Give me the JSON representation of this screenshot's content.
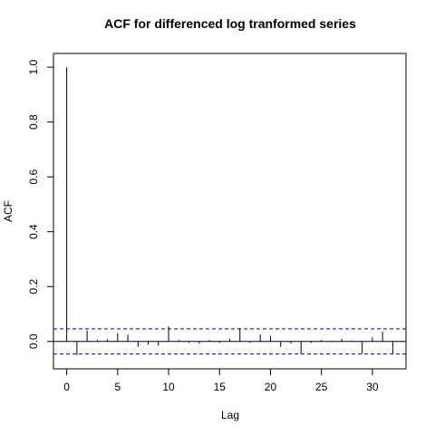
{
  "chart_data": {
    "type": "bar",
    "title": "ACF for differenced log tranformed series",
    "xlabel": "Lag",
    "ylabel": "ACF",
    "xlim": [
      -1.3,
      33.3
    ],
    "ylim": [
      -0.1,
      1.05
    ],
    "x_ticks": [
      0,
      5,
      10,
      15,
      20,
      25,
      30
    ],
    "y_ticks": [
      0.0,
      0.2,
      0.4,
      0.6,
      0.8,
      1.0
    ],
    "y_tick_labels": [
      "0.0",
      "0.2",
      "0.4",
      "0.6",
      "0.8",
      "1.0"
    ],
    "confidence_bounds": [
      0.046,
      -0.046
    ],
    "lags": [
      0,
      1,
      2,
      3,
      4,
      5,
      6,
      7,
      8,
      9,
      10,
      11,
      12,
      13,
      14,
      15,
      16,
      17,
      18,
      19,
      20,
      21,
      22,
      23,
      24,
      25,
      26,
      27,
      28,
      29,
      30,
      31,
      32
    ],
    "values": [
      1.0,
      -0.05,
      0.04,
      0.005,
      0.008,
      0.03,
      0.025,
      -0.02,
      -0.012,
      -0.015,
      0.055,
      0.005,
      -0.005,
      -0.008,
      0.005,
      -0.005,
      0.01,
      0.048,
      -0.005,
      0.025,
      0.02,
      -0.02,
      -0.008,
      -0.045,
      -0.005,
      0.005,
      -0.003,
      0.01,
      0.003,
      -0.045,
      0.015,
      0.035,
      -0.045
    ],
    "grid": false,
    "colors": {
      "bars": "#000000",
      "bounds": "#0000cc",
      "zero_line": "#000000"
    }
  }
}
